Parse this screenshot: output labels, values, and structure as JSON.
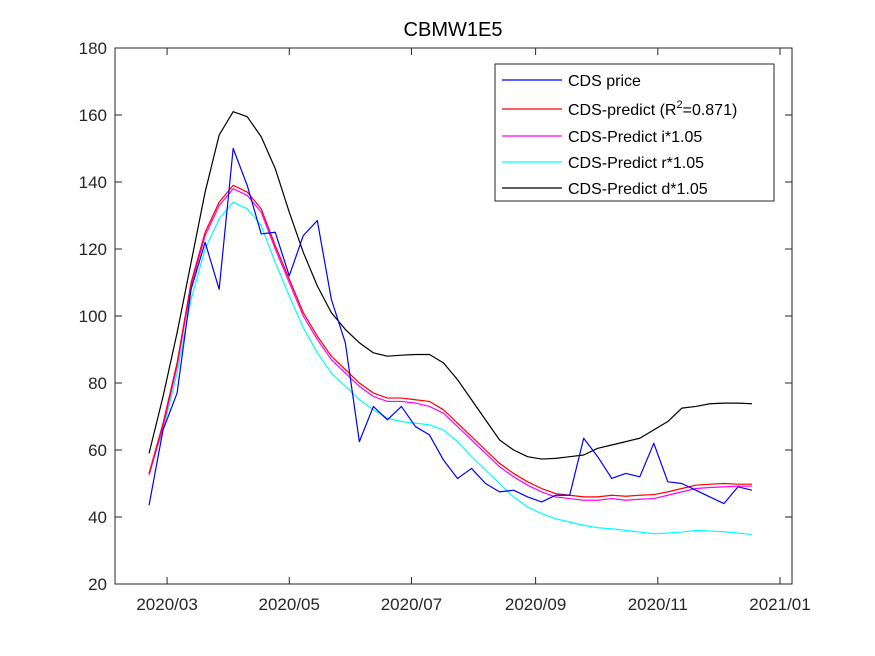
{
  "chart_data": {
    "type": "line",
    "title": "CBMW1E5",
    "xlabel": "",
    "ylabel": "",
    "x_ticks": [
      "2020/03",
      "2020/05",
      "2020/07",
      "2020/09",
      "2020/11",
      "2021/01"
    ],
    "x_tick_dates": [
      "2020-03-01",
      "2020-05-01",
      "2020-07-01",
      "2020-09-01",
      "2020-11-01",
      "2021-01-01"
    ],
    "xlim": [
      "2020-02-04",
      "2021-01-07"
    ],
    "ylim": [
      20,
      180
    ],
    "y_ticks": [
      20,
      40,
      60,
      80,
      100,
      120,
      140,
      160,
      180
    ],
    "grid": false,
    "legend_position": "top-right",
    "x": [
      "2020-02-21",
      "2020-02-28",
      "2020-03-06",
      "2020-03-13",
      "2020-03-20",
      "2020-03-27",
      "2020-04-03",
      "2020-04-10",
      "2020-04-17",
      "2020-04-24",
      "2020-05-01",
      "2020-05-08",
      "2020-05-15",
      "2020-05-22",
      "2020-05-29",
      "2020-06-05",
      "2020-06-12",
      "2020-06-19",
      "2020-06-26",
      "2020-07-03",
      "2020-07-10",
      "2020-07-17",
      "2020-07-24",
      "2020-07-31",
      "2020-08-07",
      "2020-08-14",
      "2020-08-21",
      "2020-08-28",
      "2020-09-04",
      "2020-09-11",
      "2020-09-18",
      "2020-09-25",
      "2020-10-02",
      "2020-10-09",
      "2020-10-16",
      "2020-10-23",
      "2020-10-30",
      "2020-11-06",
      "2020-11-13",
      "2020-11-20",
      "2020-11-27",
      "2020-12-04",
      "2020-12-11",
      "2020-12-18"
    ],
    "series": [
      {
        "name": "CDS price",
        "color": "#0000ff",
        "values": [
          43.5,
          66,
          77,
          108,
          122,
          108,
          150,
          139,
          124.5,
          125,
          112,
          124,
          128.5,
          105,
          92,
          62.5,
          73,
          69,
          73,
          67,
          64.5,
          57,
          51.5,
          54.5,
          50,
          47.5,
          48,
          46,
          44.5,
          46.5,
          46.5,
          63.5,
          58,
          51.5,
          53,
          52,
          62,
          50.5,
          50,
          48,
          46,
          44,
          49,
          48
        ]
      },
      {
        "name": "CDS-predict (R²=0.871)",
        "color": "#ff0000",
        "values": [
          53,
          68,
          86,
          110,
          125,
          134,
          139,
          137,
          132,
          121,
          111,
          101,
          94,
          88,
          84,
          80,
          77,
          75.5,
          75.5,
          75,
          74.5,
          72,
          68,
          64,
          60,
          56,
          53,
          50.5,
          48.5,
          47,
          46.5,
          46,
          46,
          46.5,
          46.2,
          46.5,
          46.7,
          47.5,
          48.5,
          49.5,
          49.8,
          50,
          49.8,
          49.8
        ]
      },
      {
        "name": "CDS-Predict i*1.05",
        "color": "#ff00ff",
        "values": [
          52.5,
          67,
          85,
          109,
          124,
          133,
          138,
          136,
          131,
          120,
          110,
          100,
          93,
          87,
          83,
          79,
          76,
          74.5,
          74.5,
          74,
          73,
          71,
          67,
          63,
          59,
          55,
          52,
          49.5,
          47.5,
          46,
          45.5,
          45,
          45,
          45.5,
          45,
          45.3,
          45.5,
          46.5,
          47.5,
          48.5,
          48.8,
          49,
          49.2,
          49.2
        ]
      },
      {
        "name": "CDS-Predict r*1.05",
        "color": "#00ffff",
        "values": [
          53,
          66,
          83,
          105,
          120,
          129,
          134,
          132,
          127,
          116,
          106,
          96.5,
          89,
          83,
          79,
          75,
          72,
          69.5,
          68.5,
          68,
          67.5,
          66,
          62.5,
          58,
          54,
          50,
          46,
          43,
          41,
          39.5,
          38.5,
          37.5,
          36.8,
          36.5,
          36,
          35.5,
          35,
          35.2,
          35.5,
          36,
          35.8,
          35.6,
          35.2,
          34.8
        ]
      },
      {
        "name": "CDS-Predict d*1.05",
        "color": "#000000",
        "values": [
          59,
          76,
          95,
          116,
          137,
          154,
          161,
          159.5,
          153.5,
          144,
          131,
          119,
          109,
          101,
          96,
          92,
          89,
          88,
          88.3,
          88.5,
          88.5,
          86,
          81,
          75,
          69,
          63,
          60,
          58,
          57.3,
          57.5,
          58,
          58.5,
          60.5,
          61.5,
          62.5,
          63.5,
          66,
          68.5,
          72.5,
          73,
          73.8,
          74,
          74,
          73.8
        ]
      }
    ]
  }
}
